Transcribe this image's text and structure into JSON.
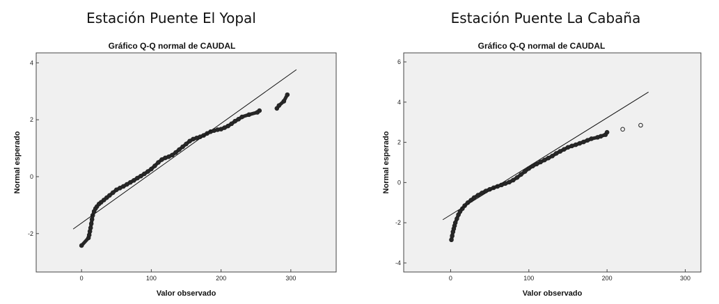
{
  "stations": [
    {
      "title": "Estación Puente El Yopal"
    },
    {
      "title": "Estación Puente La Cabaña"
    }
  ],
  "chart_data": [
    {
      "type": "scatter",
      "title": "Gráfico Q-Q normal de CAUDAL",
      "xlabel": "Valor observado",
      "ylabel": "Normal esperado",
      "xlim": [
        -65,
        365
      ],
      "ylim": [
        -3.35,
        4.35
      ],
      "xticks": [
        0,
        100,
        200,
        300
      ],
      "yticks": [
        -2,
        0,
        2,
        4
      ],
      "grid": false,
      "reference_line": {
        "x": [
          -12,
          308
        ],
        "y": [
          -1.84,
          3.76
        ]
      },
      "points": {
        "x": [
          0,
          10,
          11,
          12,
          13,
          14,
          15,
          16,
          18,
          20,
          22,
          25,
          28,
          32,
          36,
          40,
          45,
          50,
          55,
          60,
          65,
          70,
          75,
          80,
          85,
          90,
          95,
          100,
          105,
          110,
          115,
          120,
          125,
          130,
          135,
          140,
          145,
          150,
          155,
          160,
          165,
          170,
          175,
          180,
          185,
          190,
          195,
          200,
          205,
          210,
          215,
          220,
          225,
          230,
          240,
          252,
          255,
          280,
          283,
          290,
          295
        ],
        "y": [
          -2.42,
          -2.15,
          -2.05,
          -1.92,
          -1.8,
          -1.65,
          -1.5,
          -1.36,
          -1.22,
          -1.12,
          -1.05,
          -0.96,
          -0.9,
          -0.82,
          -0.74,
          -0.66,
          -0.56,
          -0.46,
          -0.4,
          -0.34,
          -0.27,
          -0.2,
          -0.13,
          -0.05,
          0.02,
          0.1,
          0.18,
          0.27,
          0.38,
          0.5,
          0.6,
          0.66,
          0.7,
          0.76,
          0.85,
          0.95,
          1.05,
          1.15,
          1.25,
          1.32,
          1.36,
          1.4,
          1.45,
          1.52,
          1.58,
          1.62,
          1.65,
          1.67,
          1.72,
          1.78,
          1.86,
          1.95,
          2.02,
          2.1,
          2.18,
          2.26,
          2.32,
          2.4,
          2.5,
          2.65,
          2.88
        ]
      }
    },
    {
      "type": "scatter",
      "title": "Gráfico Q-Q normal de CAUDAL",
      "xlabel": "Valor observado",
      "ylabel": "Normal esperado",
      "xlim": [
        -60,
        320
      ],
      "ylim": [
        -4.45,
        6.45
      ],
      "xticks": [
        0,
        100,
        200,
        300
      ],
      "yticks": [
        -4,
        -2,
        0,
        2,
        4,
        6
      ],
      "grid": false,
      "reference_line": {
        "x": [
          -10,
          253
        ],
        "y": [
          -1.85,
          4.5
        ]
      },
      "points": {
        "x": [
          1,
          2,
          3,
          4,
          5,
          6,
          8,
          10,
          12,
          15,
          18,
          22,
          26,
          30,
          35,
          40,
          45,
          50,
          55,
          60,
          65,
          70,
          75,
          80,
          85,
          90,
          95,
          100,
          105,
          110,
          115,
          120,
          125,
          130,
          135,
          140,
          145,
          150,
          155,
          160,
          165,
          170,
          175,
          180,
          188,
          192,
          198,
          200,
          220,
          243
        ],
        "y": [
          -2.85,
          -2.65,
          -2.45,
          -2.3,
          -2.15,
          -2.0,
          -1.8,
          -1.6,
          -1.45,
          -1.3,
          -1.15,
          -1.0,
          -0.88,
          -0.75,
          -0.63,
          -0.52,
          -0.42,
          -0.34,
          -0.26,
          -0.19,
          -0.12,
          -0.05,
          0.02,
          0.12,
          0.25,
          0.4,
          0.55,
          0.7,
          0.82,
          0.92,
          1.02,
          1.12,
          1.22,
          1.32,
          1.45,
          1.55,
          1.65,
          1.75,
          1.82,
          1.88,
          1.95,
          2.02,
          2.1,
          2.18,
          2.25,
          2.3,
          2.38,
          2.5,
          2.65,
          2.85
        ]
      }
    }
  ]
}
